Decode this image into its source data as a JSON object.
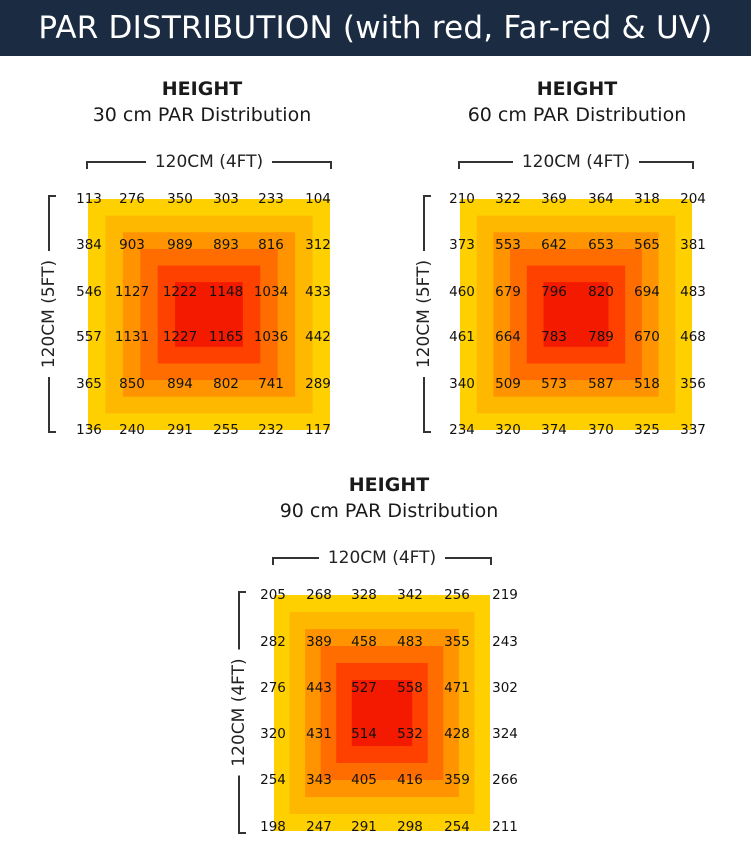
{
  "title": "PAR DISTRIBUTION (with red, Far-red & UV)",
  "colors": {
    "banner": "#1b2b42",
    "rings": [
      "#ffd000",
      "#ffb800",
      "#ff9400",
      "#ff6d00",
      "#ff4100",
      "#f41a00"
    ]
  },
  "chart_data": [
    {
      "type": "heatmap",
      "title_line1": "HEIGHT",
      "title_line2": "30 cm PAR Distribution",
      "xlabel": "120CM (4FT)",
      "ylabel": "120CM (5FT)",
      "grid": [
        [
          113,
          276,
          350,
          303,
          233,
          104
        ],
        [
          384,
          903,
          989,
          893,
          816,
          312
        ],
        [
          546,
          1127,
          1222,
          1148,
          1034,
          433
        ],
        [
          557,
          1131,
          1227,
          1165,
          1036,
          442
        ],
        [
          365,
          850,
          894,
          802,
          741,
          289
        ],
        [
          136,
          240,
          291,
          255,
          232,
          117
        ]
      ]
    },
    {
      "type": "heatmap",
      "title_line1": "HEIGHT",
      "title_line2": "60 cm PAR Distribution",
      "xlabel": "120CM (4FT)",
      "ylabel": "120CM (5FT)",
      "grid": [
        [
          210,
          322,
          369,
          364,
          318,
          204
        ],
        [
          373,
          553,
          642,
          653,
          565,
          381
        ],
        [
          460,
          679,
          796,
          820,
          694,
          483
        ],
        [
          461,
          664,
          783,
          789,
          670,
          468
        ],
        [
          340,
          509,
          573,
          587,
          518,
          356
        ],
        [
          234,
          320,
          374,
          370,
          325,
          337
        ]
      ]
    },
    {
      "type": "heatmap",
      "title_line1": "HEIGHT",
      "title_line2": "90 cm PAR Distribution",
      "xlabel": "120CM (4FT)",
      "ylabel": "120CM (4FT)",
      "grid": [
        [
          205,
          268,
          328,
          342,
          256,
          219
        ],
        [
          282,
          389,
          458,
          483,
          355,
          243
        ],
        [
          276,
          443,
          527,
          558,
          471,
          302
        ],
        [
          320,
          431,
          514,
          532,
          428,
          324
        ],
        [
          254,
          343,
          405,
          416,
          359,
          266
        ],
        [
          198,
          247,
          291,
          298,
          254,
          211
        ]
      ]
    }
  ]
}
